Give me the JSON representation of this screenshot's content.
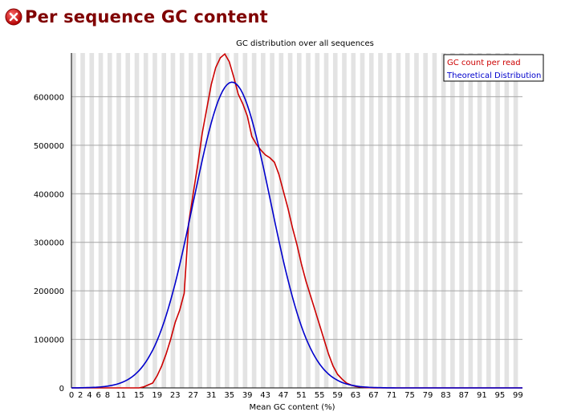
{
  "page": {
    "title": "Per sequence GC content",
    "status_icon": "error-icon",
    "status_color": "#cc0000"
  },
  "chart_data": {
    "type": "line",
    "title": "GC distribution over all sequences",
    "xlabel": "Mean GC content (%)",
    "ylabel": "",
    "xlim": [
      0,
      100
    ],
    "ylim": [
      0,
      690000
    ],
    "yticks": [
      0,
      100000,
      200000,
      300000,
      400000,
      500000,
      600000
    ],
    "xticks": [
      0,
      2,
      4,
      6,
      8,
      11,
      15,
      19,
      23,
      27,
      31,
      35,
      39,
      43,
      47,
      51,
      55,
      59,
      63,
      67,
      71,
      75,
      79,
      83,
      87,
      91,
      95,
      99
    ],
    "grid": true,
    "legend_position": "top-right",
    "series": [
      {
        "name": "GC count per read",
        "color": "#cc0000",
        "x": [
          0,
          5,
          10,
          13,
          15,
          16,
          17,
          18,
          19,
          20,
          21,
          22,
          23,
          24,
          25,
          26,
          27,
          28,
          29,
          30,
          31,
          32,
          33,
          34,
          35,
          36,
          37,
          38,
          39,
          40,
          41,
          42,
          43,
          44,
          45,
          46,
          47,
          48,
          49,
          50,
          51,
          52,
          53,
          54,
          55,
          56,
          57,
          58,
          59,
          60,
          61,
          62,
          63,
          64,
          65,
          66,
          67,
          68,
          70,
          75,
          80,
          90,
          100
        ],
        "y": [
          0,
          0,
          0,
          0,
          0,
          2000,
          6000,
          10000,
          25000,
          45000,
          70000,
          100000,
          135000,
          160000,
          195000,
          340000,
          400000,
          460000,
          525000,
          575000,
          625000,
          660000,
          680000,
          688000,
          672000,
          640000,
          605000,
          585000,
          560000,
          518000,
          502000,
          490000,
          480000,
          474000,
          465000,
          440000,
          405000,
          370000,
          330000,
          295000,
          255000,
          220000,
          190000,
          160000,
          130000,
          100000,
          70000,
          45000,
          28000,
          18000,
          10000,
          6000,
          3000,
          2000,
          1000,
          500,
          200,
          100,
          0,
          0,
          0,
          0,
          0
        ]
      },
      {
        "name": "Theoretical Distribution",
        "color": "#0000cc",
        "mean": 35.6,
        "sd": 8.6,
        "peak": 630000
      }
    ]
  }
}
